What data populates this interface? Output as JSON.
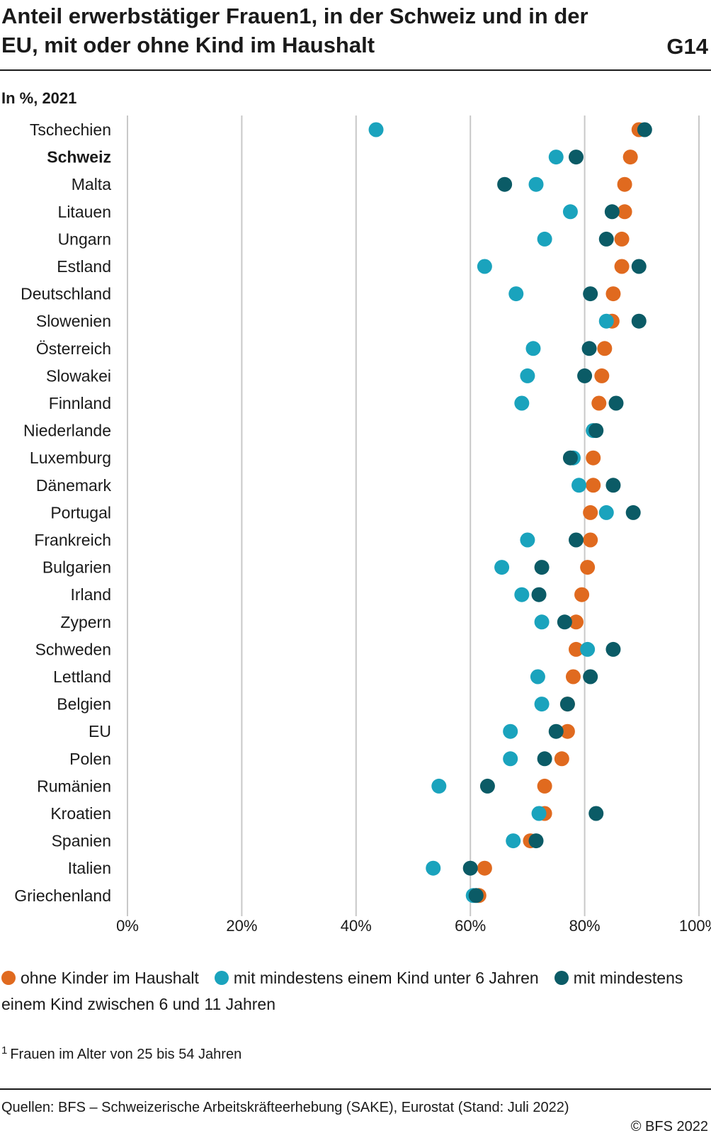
{
  "header": {
    "title": "Anteil erwerbstätiger Frauen",
    "title_sup": "1",
    "title_rest": ", in der Schweiz und in der EU, mit oder ohne Kind im Haushalt",
    "code": "G14",
    "unit": "In %, 2021"
  },
  "footnote": {
    "mark": "1",
    "text": "Frauen im Alter von 25 bis 54 Jahren"
  },
  "footer": {
    "source": "Quellen: BFS – Schweizerische Arbeitskräfteerhebung (SAKE), Eurostat (Stand: Juli 2022)",
    "copyright": "© BFS 2022"
  },
  "chart_data": {
    "type": "scatter",
    "xlim": [
      0,
      100
    ],
    "xticks": [
      0,
      20,
      40,
      60,
      80,
      100
    ],
    "xtick_labels": [
      "0%",
      "20%",
      "40%",
      "60%",
      "80%",
      "100%"
    ],
    "grid": "vertical",
    "legend_position": "bottom",
    "highlight_category": "Schweiz",
    "categories": [
      "Tschechien",
      "Schweiz",
      "Malta",
      "Litauen",
      "Ungarn",
      "Estland",
      "Deutschland",
      "Slowenien",
      "Österreich",
      "Slowakei",
      "Finnland",
      "Niederlande",
      "Luxemburg",
      "Dänemark",
      "Portugal",
      "Frankreich",
      "Bulgarien",
      "Irland",
      "Zypern",
      "Schweden",
      "Lettland",
      "Belgien",
      "EU",
      "Polen",
      "Rumänien",
      "Kroatien",
      "Spanien",
      "Italien",
      "Griechenland"
    ],
    "series": [
      {
        "name": "ohne Kinder im Haushalt",
        "color": "#e06a1f",
        "values": [
          89.5,
          88.0,
          87.0,
          87.0,
          86.5,
          86.5,
          85.0,
          84.8,
          83.5,
          83.0,
          82.5,
          81.5,
          81.5,
          81.5,
          81.0,
          81.0,
          80.5,
          79.5,
          78.5,
          78.5,
          78.0,
          77.0,
          77.0,
          76.0,
          73.0,
          73.0,
          70.5,
          62.5,
          61.5
        ]
      },
      {
        "name": "mit mindestens einem Kind unter 6 Jahren",
        "color": "#1aa3bd",
        "values": [
          43.5,
          75.0,
          71.5,
          77.5,
          73.0,
          62.5,
          68.0,
          83.8,
          71.0,
          70.0,
          69.0,
          81.5,
          78.0,
          79.0,
          83.8,
          70.0,
          65.5,
          69.0,
          72.5,
          80.5,
          71.8,
          72.5,
          67.0,
          67.0,
          54.5,
          72.0,
          67.5,
          53.5,
          60.5
        ]
      },
      {
        "name": "mit mindestens einem Kind zwischen 6 und 11 Jahren",
        "color": "#0b5b66",
        "values": [
          90.5,
          78.5,
          66.0,
          84.8,
          83.8,
          89.5,
          81.0,
          89.5,
          80.8,
          80.0,
          85.5,
          82.0,
          77.5,
          85.0,
          88.5,
          78.5,
          72.5,
          72.0,
          76.5,
          85.0,
          81.0,
          77.0,
          75.0,
          73.0,
          63.0,
          82.0,
          71.5,
          60.0,
          61.0
        ]
      }
    ]
  }
}
